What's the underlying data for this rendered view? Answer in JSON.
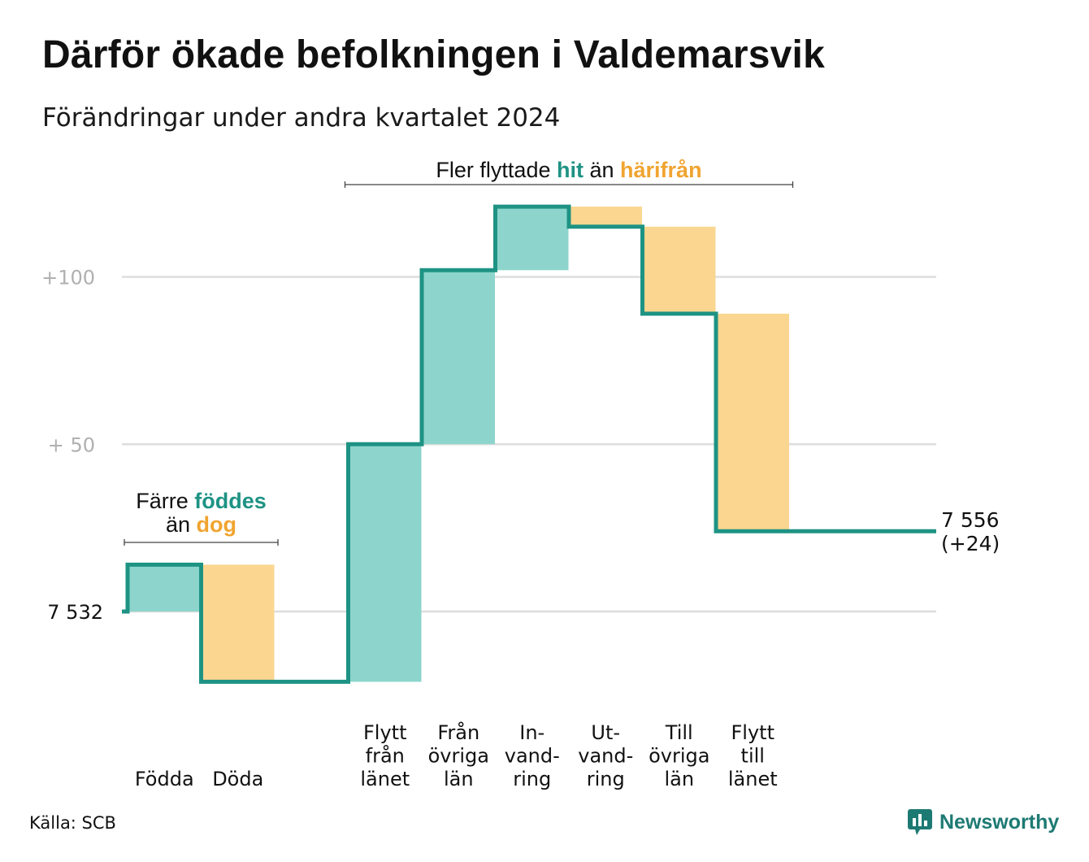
{
  "title": "Därför ökade befolkningen i Valdemarsvik",
  "subtitle": "Förändringar under andra kvartalet 2024",
  "source": "Källa: SCB",
  "brand": {
    "name": "Newsworthy"
  },
  "colors": {
    "increase": "#8dd5cc",
    "decrease": "#fad690",
    "line": "#1e9384",
    "grid": "#dddddd",
    "tick": "#b0b0b0",
    "text": "#111111"
  },
  "chart_data": {
    "type": "waterfall",
    "start": {
      "value": 7532,
      "label": "7  532"
    },
    "end": {
      "value": 7556,
      "label_lines": [
        "7 556",
        "(+24)"
      ]
    },
    "yticks": [
      {
        "value": 7632,
        "label": "+100"
      },
      {
        "value": 7582,
        "label": "+  50"
      },
      {
        "value": 7532,
        "label": "7  532"
      }
    ],
    "steps": [
      {
        "label_lines": [
          "Födda"
        ],
        "change": 14,
        "type": "increase"
      },
      {
        "label_lines": [
          "Döda"
        ],
        "change": -35,
        "type": "decrease"
      },
      {
        "label_lines": [],
        "change": 0,
        "type": "gap"
      },
      {
        "label_lines": [
          "Flytt",
          "från",
          "länet"
        ],
        "change": 71,
        "type": "increase"
      },
      {
        "label_lines": [
          "Från",
          "övriga",
          "län"
        ],
        "change": 52,
        "type": "increase"
      },
      {
        "label_lines": [
          "In-",
          "vand-",
          "ring"
        ],
        "change": 19,
        "type": "increase"
      },
      {
        "label_lines": [
          "Ut-",
          "vand-",
          "ring"
        ],
        "change": -6,
        "type": "decrease"
      },
      {
        "label_lines": [
          "Till",
          "övriga",
          "län"
        ],
        "change": -26,
        "type": "decrease"
      },
      {
        "label_lines": [
          "Flytt",
          "till",
          "länet"
        ],
        "change": -65,
        "type": "decrease"
      }
    ],
    "annotations": [
      {
        "id": "births",
        "from_step": 0,
        "to_step": 1,
        "lines": [
          [
            {
              "text": "Färre ",
              "style": "plain"
            },
            {
              "text": "föddes",
              "style": "increase"
            }
          ],
          [
            {
              "text": "än ",
              "style": "plain"
            },
            {
              "text": "dog",
              "style": "decrease"
            }
          ]
        ]
      },
      {
        "id": "moves",
        "from_step": 3,
        "to_step": 8,
        "lines": [
          [
            {
              "text": "Fler flyttade ",
              "style": "plain"
            },
            {
              "text": "hit",
              "style": "increase"
            },
            {
              "text": " än ",
              "style": "plain"
            },
            {
              "text": "härifrån",
              "style": "decrease"
            }
          ]
        ]
      }
    ]
  }
}
